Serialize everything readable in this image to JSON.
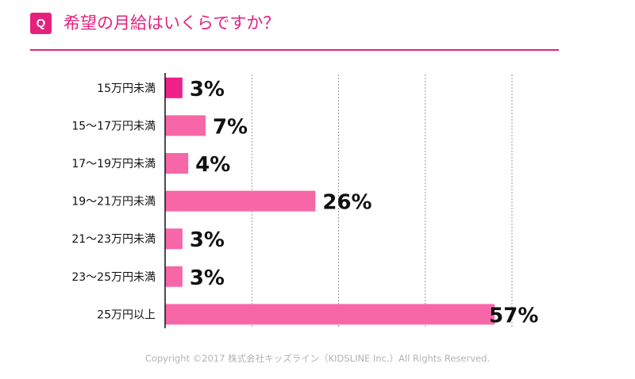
{
  "header": {
    "badge": "Q",
    "title": "希望の月給はいくらですか？"
  },
  "colors": {
    "accent": "#e6217d",
    "bar": "#f767a8",
    "bar_first": "#f0208a",
    "grid": "#9a9a9a",
    "axis": "#111111",
    "label": "#111111"
  },
  "chart_data": {
    "type": "bar",
    "orientation": "horizontal",
    "categories": [
      "15万円未満",
      "15〜17万円未満",
      "17〜19万円未満",
      "19〜21万円未満",
      "21〜23万円未満",
      "23〜25万円未満",
      "25万円以上"
    ],
    "values": [
      3,
      7,
      4,
      26,
      3,
      3,
      57
    ],
    "value_labels": [
      "3%",
      "7%",
      "4%",
      "26%",
      "3%",
      "3%",
      "57%"
    ],
    "unit": "%",
    "xlim": [
      0,
      60
    ],
    "gridlines": [
      15,
      30,
      45,
      60
    ],
    "grid": true,
    "title": "希望の月給はいくらですか？",
    "xlabel": "",
    "ylabel": ""
  },
  "footer": {
    "copyright": "Copyright ©2017 株式会社キッズライン（KIDSLINE Inc.）All Rights Reserved."
  }
}
